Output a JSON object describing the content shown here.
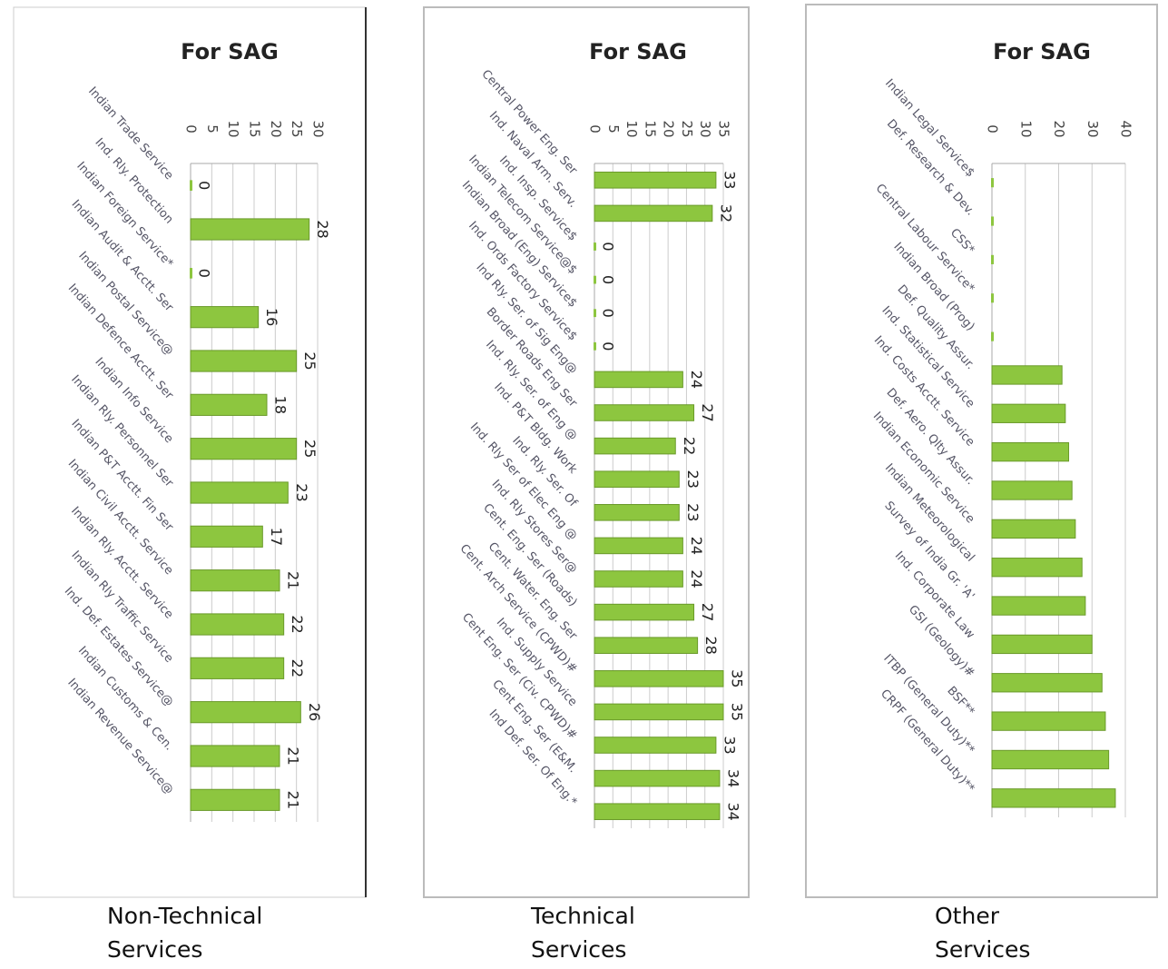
{
  "chart_data": [
    {
      "type": "bar",
      "title": "For SAG",
      "caption": [
        "Non-Technical",
        "Services"
      ],
      "color": "#8dc63f",
      "data_labels": true,
      "grid": true,
      "categories": [
        "Indian Trade Service",
        "Ind. Rly. Protection",
        "Indian Foreign Service*",
        "Indian Audit & Acctt. Ser",
        "Indian Postal Service@",
        "Indian Defence Acctt. Ser",
        "Indian Info Service",
        "Indian Rly. Personnel Ser",
        "Indian P&T Acctt. Fin Ser",
        "Indian Civil Acctt. Service",
        "Indian Rly. Acctt. Service",
        "Indian Rly Traffic Service",
        "Ind. Def. Estates Service@",
        "Indian Customs & Cen.",
        "Indian Revenue Service@"
      ],
      "values": [
        0,
        28,
        0,
        16,
        25,
        18,
        25,
        23,
        17,
        21,
        22,
        22,
        26,
        21,
        21
      ],
      "xlim": [
        0,
        30
      ],
      "xticks": [
        0,
        5,
        10,
        15,
        20,
        25,
        30
      ]
    },
    {
      "type": "bar",
      "title": "For SAG",
      "caption": [
        "Technical",
        "Services"
      ],
      "color": "#8dc63f",
      "data_labels": true,
      "grid": true,
      "categories": [
        "Central Power Eng. Ser",
        "Ind. Naval Arm. Serv.",
        "Ind. Insp. Service$",
        "Indian Telecom Service@$",
        "Indian Broad (Eng) Service$",
        "Ind. Ords Factory Service$",
        "Ind Rly. Ser. of Sig Eng@",
        "Border Roads Eng Ser",
        "Ind. Rly. Ser. of Eng @",
        "Ind. P&T Bldg. Work",
        "Ind. Rly. Ser. Of",
        "Ind. Rly Ser of Elec Eng @",
        "Ind. Rly Stores Ser@",
        "Cent. Eng. Ser (Roads)",
        "Cent. Water. Eng. Ser",
        "Cent. Arch Service (CPWD)#",
        "Ind. Supply Service",
        "Cent Eng. Ser (Civ. CPWD)#",
        "Cent Eng. Ser (E&M.",
        "Ind Def. Ser. Of Eng.*"
      ],
      "values": [
        33,
        32,
        0,
        0,
        0,
        0,
        24,
        27,
        22,
        23,
        23,
        24,
        24,
        27,
        28,
        35,
        35,
        33,
        34,
        34
      ],
      "xlim": [
        0,
        35
      ],
      "xticks": [
        0,
        5,
        10,
        15,
        20,
        25,
        30,
        35
      ]
    },
    {
      "type": "bar",
      "title": "For SAG",
      "caption": [
        "Other",
        "Services"
      ],
      "color": "#8dc63f",
      "data_labels": false,
      "grid": true,
      "categories": [
        "Indian Legal Service$",
        "Def. Research & Dev.",
        "CSS*",
        "Central Labour Service*",
        "Indian Broad (Prog)",
        "Def. Quality Assur.",
        "Ind. Statistical Service",
        "Ind. Costs Acctt. Service",
        "Def. Aero. Qlty Assur.",
        "Indian Economic Service",
        "Indian Meteorological",
        "Survey of India Gr. 'A'",
        "Ind. Corporate Law",
        "GSI (Geology)#",
        "BSF**",
        "ITBP (General Duty)**",
        "CRPF (General Duty)**"
      ],
      "values": [
        0,
        0,
        0,
        0,
        0,
        21,
        22,
        23,
        24,
        25,
        27,
        28,
        30,
        33,
        34,
        35,
        37
      ],
      "xlim": [
        0,
        40
      ],
      "xticks": [
        0,
        10,
        20,
        30,
        40
      ]
    }
  ]
}
